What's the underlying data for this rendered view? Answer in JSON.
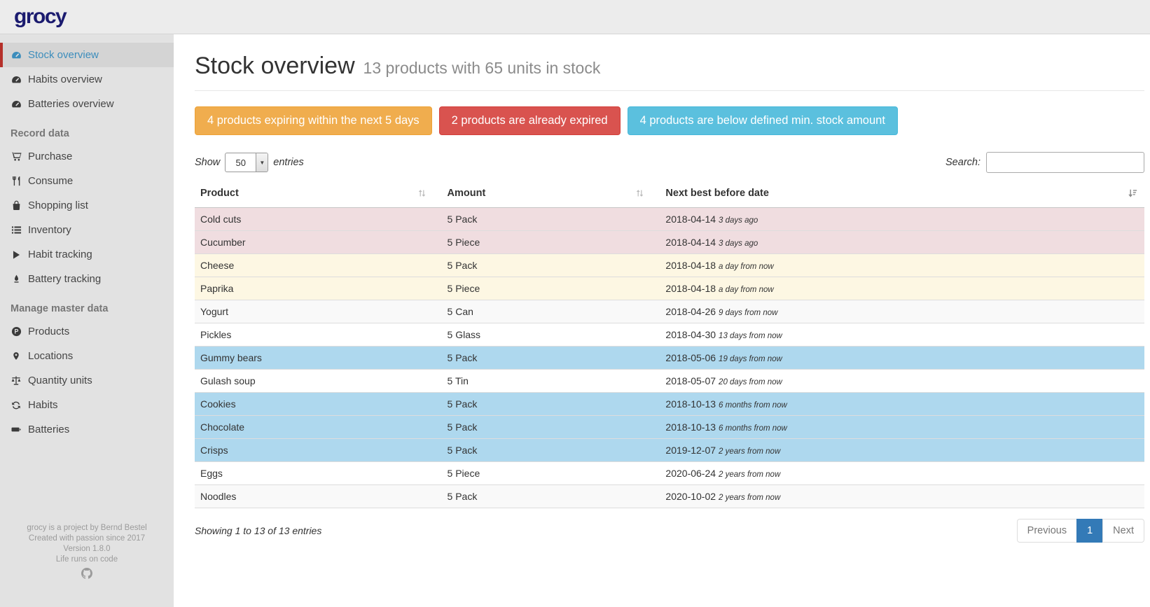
{
  "app": {
    "logo": "grocy"
  },
  "sidebar": {
    "sections": [
      {
        "header": null,
        "items": [
          {
            "id": "stock-overview",
            "icon": "gauge-icon",
            "label": "Stock overview",
            "active": true
          },
          {
            "id": "habits-overview",
            "icon": "gauge-icon",
            "label": "Habits overview"
          },
          {
            "id": "batteries-overview",
            "icon": "gauge-icon",
            "label": "Batteries overview"
          }
        ]
      },
      {
        "header": "Record data",
        "items": [
          {
            "id": "purchase",
            "icon": "shopping-cart-icon",
            "label": "Purchase"
          },
          {
            "id": "consume",
            "icon": "cutlery-icon",
            "label": "Consume"
          },
          {
            "id": "shopping-list",
            "icon": "shopping-bag-icon",
            "label": "Shopping list"
          },
          {
            "id": "inventory",
            "icon": "list-icon",
            "label": "Inventory"
          },
          {
            "id": "habit-tracking",
            "icon": "play-icon",
            "label": "Habit tracking"
          },
          {
            "id": "battery-tracking",
            "icon": "droplet-icon",
            "label": "Battery tracking"
          }
        ]
      },
      {
        "header": "Manage master data",
        "items": [
          {
            "id": "products",
            "icon": "product-p-icon",
            "label": "Products"
          },
          {
            "id": "locations",
            "icon": "map-marker-icon",
            "label": "Locations"
          },
          {
            "id": "quantity-units",
            "icon": "balance-scale-icon",
            "label": "Quantity units"
          },
          {
            "id": "habits",
            "icon": "refresh-icon",
            "label": "Habits"
          },
          {
            "id": "batteries",
            "icon": "battery-icon",
            "label": "Batteries"
          }
        ]
      }
    ],
    "footer": {
      "lines": [
        "grocy is a project by Bernd Bestel",
        "Created with passion since 2017",
        "Version 1.8.0",
        "Life runs on code"
      ],
      "github_icon": "github-icon"
    }
  },
  "header": {
    "title": "Stock overview",
    "subtitle": "13 products with 65 units in stock"
  },
  "alerts": [
    {
      "id": "expiring-alert-button",
      "label": "4 products expiring within the next 5 days",
      "color": "#f0ad4e",
      "border": "#eea236"
    },
    {
      "id": "expired-alert-button",
      "label": "2 products are already expired",
      "color": "#d9534f",
      "border": "#d43f3a"
    },
    {
      "id": "belowmin-alert-button",
      "label": "4 products are below defined min. stock amount",
      "color": "#5bc0de",
      "border": "#46b8da"
    }
  ],
  "table_controls": {
    "show_label": "Show",
    "page_length": "50",
    "entries_label": "entries",
    "search_label": "Search:",
    "search_value": "",
    "search_placeholder": ""
  },
  "table": {
    "columns": [
      "Product",
      "Amount",
      "Next best before date"
    ],
    "rows": [
      {
        "product": "Cold cuts",
        "amount": "5 Pack",
        "date": "2018-04-14",
        "relative": "3 days ago",
        "status": "expired"
      },
      {
        "product": "Cucumber",
        "amount": "5 Piece",
        "date": "2018-04-14",
        "relative": "3 days ago",
        "status": "expired"
      },
      {
        "product": "Cheese",
        "amount": "5 Pack",
        "date": "2018-04-18",
        "relative": "a day from now",
        "status": "expiring"
      },
      {
        "product": "Paprika",
        "amount": "5 Piece",
        "date": "2018-04-18",
        "relative": "a day from now",
        "status": "expiring"
      },
      {
        "product": "Yogurt",
        "amount": "5 Can",
        "date": "2018-04-26",
        "relative": "9 days from now",
        "status": "none"
      },
      {
        "product": "Pickles",
        "amount": "5 Glass",
        "date": "2018-04-30",
        "relative": "13 days from now",
        "status": "none"
      },
      {
        "product": "Gummy bears",
        "amount": "5 Pack",
        "date": "2018-05-06",
        "relative": "19 days from now",
        "status": "belowmin"
      },
      {
        "product": "Gulash soup",
        "amount": "5 Tin",
        "date": "2018-05-07",
        "relative": "20 days from now",
        "status": "none"
      },
      {
        "product": "Cookies",
        "amount": "5 Pack",
        "date": "2018-10-13",
        "relative": "6 months from now",
        "status": "belowmin"
      },
      {
        "product": "Chocolate",
        "amount": "5 Pack",
        "date": "2018-10-13",
        "relative": "6 months from now",
        "status": "belowmin"
      },
      {
        "product": "Crisps",
        "amount": "5 Pack",
        "date": "2019-12-07",
        "relative": "2 years from now",
        "status": "belowmin"
      },
      {
        "product": "Eggs",
        "amount": "5 Piece",
        "date": "2020-06-24",
        "relative": "2 years from now",
        "status": "none"
      },
      {
        "product": "Noodles",
        "amount": "5 Pack",
        "date": "2020-10-02",
        "relative": "2 years from now",
        "status": "none"
      }
    ]
  },
  "table_footer": {
    "info": "Showing 1 to 13 of 13 entries",
    "pagination": {
      "previous": "Previous",
      "pages": [
        "1"
      ],
      "active_page": "1",
      "next": "Next"
    }
  },
  "colors": {
    "logo": "#1b1b6f",
    "active_nav_accent": "#b5302a",
    "active_nav_text": "#3c8dbc",
    "row_expired": "#f0dde0",
    "row_expiring": "#fdf7e3",
    "row_below_min": "#aed8ee",
    "pagination_active": "#337ab7"
  }
}
